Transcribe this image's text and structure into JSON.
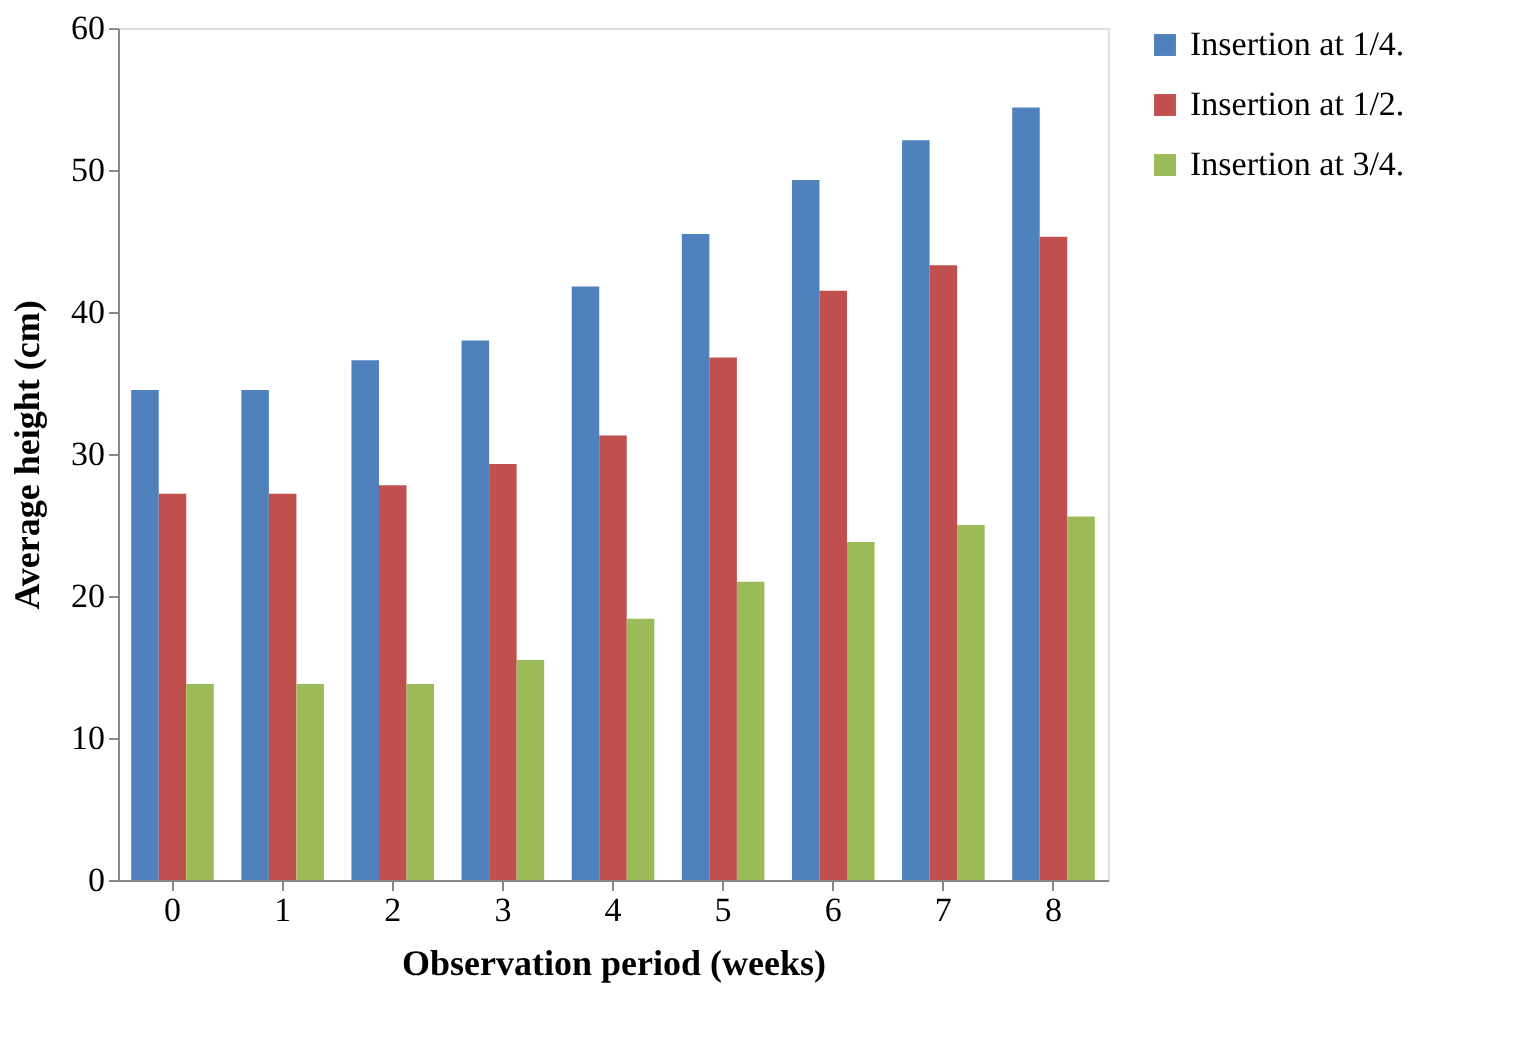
{
  "chart_data": {
    "type": "bar",
    "xlabel": "Observation period (weeks)",
    "ylabel": "Average height (cm)",
    "categories": [
      "0",
      "1",
      "2",
      "3",
      "4",
      "5",
      "6",
      "7",
      "8"
    ],
    "series": [
      {
        "name": "Insertion at 1/4.",
        "color": "#4f81bd",
        "values": [
          34.5,
          34.5,
          36.6,
          38.0,
          41.8,
          45.5,
          49.3,
          52.1,
          54.4
        ]
      },
      {
        "name": "Insertion at 1/2.",
        "color": "#c0504d",
        "values": [
          27.2,
          27.2,
          27.8,
          29.3,
          31.3,
          36.8,
          41.5,
          43.3,
          45.3
        ]
      },
      {
        "name": "Insertion at 3/4.",
        "color": "#9bbb59",
        "values": [
          13.8,
          13.8,
          13.8,
          15.5,
          18.4,
          21.0,
          23.8,
          25.0,
          25.6
        ]
      }
    ],
    "ylim": [
      0,
      60
    ],
    "yticks": [
      0,
      10,
      20,
      30,
      40,
      50,
      60
    ],
    "grid": false,
    "legend": "right"
  }
}
